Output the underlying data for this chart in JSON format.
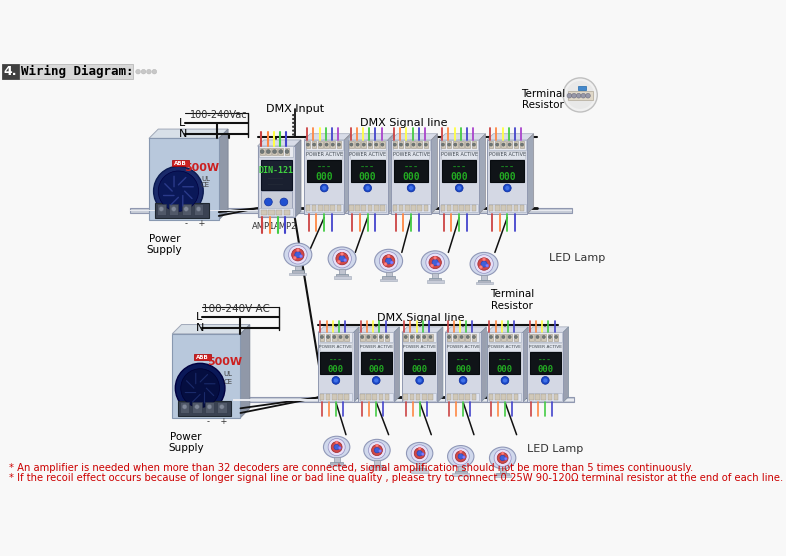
{
  "title": "4.  Wiring Diagram:",
  "bg_color": "#f8f8f8",
  "note1": "* An amplifier is needed when more than 32 decoders are connected, signal amplification should not be more than 5 times continuously.",
  "note2": "* If the recoil effect occurs because of longer signal line or bad line quality , please try to connect 0.25W 90-120Ω terminal resistor at the end of each line.",
  "note_color": "#cc0000",
  "note_fontsize": 7.2,
  "label_dmx_input": "DMX Input",
  "label_dmx_signal_top": "DMX Signal line",
  "label_dmx_signal_bot": "DMX Signal line",
  "label_terminal_top": "Terminal\nResistor",
  "label_terminal_bot": "Terminal\nResistor",
  "label_power_top": "Power\nSupply",
  "label_power_bot": "Power\nSupply",
  "label_led_top": "LED Lamp",
  "label_led_bot": "LED Lamp",
  "label_ac_top": "100-240Vac",
  "label_ac_bot": "100-240V AC",
  "label_amp1": "AMP1",
  "label_amp2": "AMP2",
  "label_din121": "DIN-121",
  "label_500w": "500W"
}
